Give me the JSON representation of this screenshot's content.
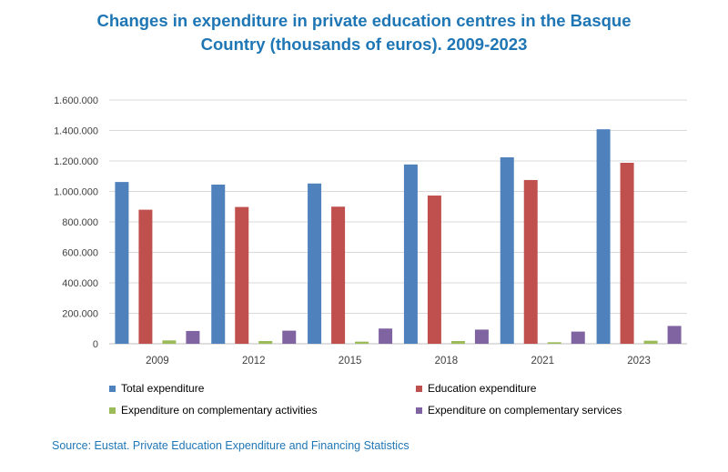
{
  "title": {
    "line1": "Changes in expenditure in private education centres in the Basque",
    "line2": "Country (thousands of euros). 2009-2023"
  },
  "source": "Source: Eustat. Private Education Expenditure and Financing Statistics",
  "chart_data": {
    "type": "bar",
    "title": "Changes in expenditure in private education centres in the Basque Country (thousands of euros). 2009-2023",
    "xlabel": "",
    "ylabel": "",
    "ylim": [
      0,
      1600000
    ],
    "yticks": [
      0,
      200000,
      400000,
      600000,
      800000,
      1000000,
      1200000,
      1400000,
      1600000
    ],
    "ytick_labels": [
      "0",
      "200.000",
      "400.000",
      "600.000",
      "800.000",
      "1.000.000",
      "1.200.000",
      "1.400.000",
      "1.600.000"
    ],
    "grid": true,
    "legend_position": "bottom",
    "categories": [
      "2009",
      "2012",
      "2015",
      "2018",
      "2021",
      "2023"
    ],
    "series": [
      {
        "name": "Total expenditure",
        "color": "#4f81bd",
        "values": [
          1062000,
          1045000,
          1052000,
          1177000,
          1224000,
          1408000
        ]
      },
      {
        "name": "Education expenditure",
        "color": "#c0504d",
        "values": [
          880000,
          898000,
          900000,
          973000,
          1075000,
          1188000
        ]
      },
      {
        "name": "Expenditure on complementary activities",
        "color": "#9bbb59",
        "values": [
          22000,
          18000,
          14000,
          18000,
          10000,
          20000
        ]
      },
      {
        "name": "Expenditure on complementary services",
        "color": "#8064a2",
        "values": [
          84000,
          86000,
          100000,
          93000,
          80000,
          117000
        ]
      }
    ]
  }
}
